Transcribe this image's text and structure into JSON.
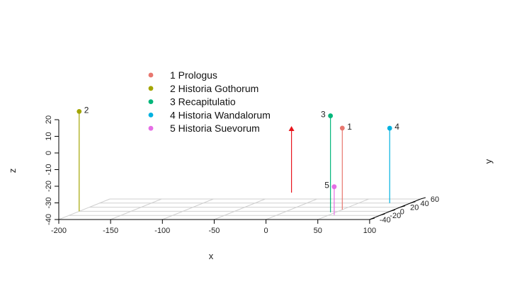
{
  "chart_data": {
    "type": "scatter3d",
    "title": "",
    "xlabel": "x",
    "ylabel": "y",
    "zlabel": "z",
    "xlim": [
      -200,
      100
    ],
    "ylim": [
      -40,
      60
    ],
    "zlim": [
      -40,
      20
    ],
    "x_ticks": [
      "-200",
      "-150",
      "-100",
      "-50",
      "0",
      "50",
      "100"
    ],
    "y_ticks": [
      "-40",
      "-20",
      "0",
      "20",
      "40",
      "60"
    ],
    "z_ticks": [
      "-40",
      "-30",
      "-20",
      "-10",
      "0",
      "10",
      "20"
    ],
    "grid": true,
    "legend": "top-center",
    "points": [
      {
        "label": "1",
        "name": "1 Prologus",
        "x": 50,
        "y": 8,
        "z": 9,
        "color": "#e8776f"
      },
      {
        "label": "2",
        "name": "2 Historia Gothorum",
        "x": -200,
        "y": 0,
        "z": 20,
        "color": "#a3a500"
      },
      {
        "label": "3",
        "name": "3 Recapitulatio",
        "x": 45,
        "y": -5,
        "z": 18,
        "color": "#00b67a"
      },
      {
        "label": "4",
        "name": "4 Historia Wandalorum",
        "x": 80,
        "y": 40,
        "z": 5,
        "color": "#00b1e0"
      },
      {
        "label": "5",
        "name": "5 Historia Suevorum",
        "x": 55,
        "y": -18,
        "z": -23,
        "color": "#e56ee5"
      }
    ],
    "arrow": {
      "x": 0,
      "y": 10,
      "z_from": -30,
      "z_to": 10,
      "color": "#e8151c"
    }
  }
}
